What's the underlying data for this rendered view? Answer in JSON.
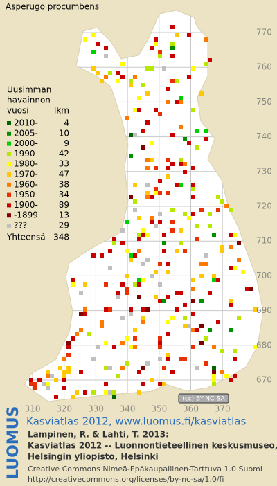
{
  "title": "Asperugo procumbens",
  "legend": {
    "heading": [
      "Uusimman",
      "havainnon",
      "vuosi"
    ],
    "count_heading": "lkm",
    "rows": [
      {
        "label": "2010-",
        "count": 4,
        "color": "#006400"
      },
      {
        "label": "2005-",
        "count": 10,
        "color": "#009000"
      },
      {
        "label": "2000-",
        "count": 9,
        "color": "#00d000"
      },
      {
        "label": "1990-",
        "count": 42,
        "color": "#b8e800"
      },
      {
        "label": "1980-",
        "count": 33,
        "color": "#ffff00"
      },
      {
        "label": "1970-",
        "count": 47,
        "color": "#ffc800"
      },
      {
        "label": "1960-",
        "count": 38,
        "color": "#ff7800"
      },
      {
        "label": "1950-",
        "count": 34,
        "color": "#e83000"
      },
      {
        "label": "1900-",
        "count": 89,
        "color": "#c80000"
      },
      {
        "label": "-1899",
        "count": 13,
        "color": "#800000"
      },
      {
        "label": "???",
        "count": 29,
        "color": "#c0c0c0"
      }
    ],
    "total_label": "Yhteensä",
    "total": 348
  },
  "grid": {
    "x_labels": [
      310,
      320,
      330,
      340,
      350,
      360,
      370
    ],
    "y_labels": [
      770,
      760,
      750,
      740,
      730,
      720,
      710,
      700,
      690,
      680,
      670
    ]
  },
  "license_badge": "(cc) BY-NC-SA",
  "footer": {
    "brand": "LUOMUS",
    "link": "Kasviatlas 2012, www.luomus.fi/kasviatlas",
    "citation": [
      "Lampinen, R. & Lahti, T. 2013:",
      "Kasviatlas 2012 -- Luonnontieteellinen keskusmuseo,",
      "Helsingin yliopisto, Helsinki"
    ],
    "license": [
      "Creative Commons Nimeä-Epäkaupallinen-Tarttuva 1.0 Suomi",
      "http://creativecommons.org/licenses/by-nc-sa/1.0/fi"
    ]
  }
}
